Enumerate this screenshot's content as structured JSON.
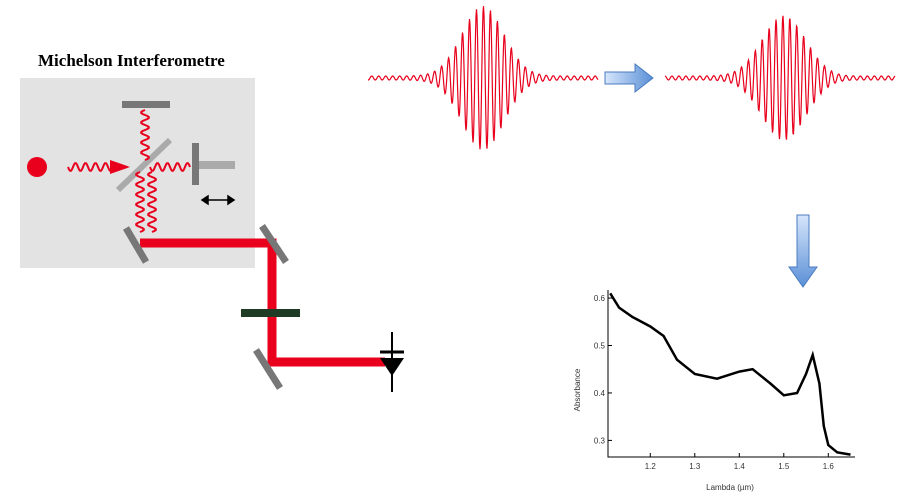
{
  "header": {
    "title": "Michelson  Interferometre"
  },
  "chart_data": {
    "type": "line",
    "x_label": "Lambda (µm)",
    "y_label": "Absorbance",
    "x": [
      1.11,
      1.13,
      1.16,
      1.2,
      1.23,
      1.26,
      1.3,
      1.35,
      1.4,
      1.43,
      1.47,
      1.5,
      1.53,
      1.55,
      1.565,
      1.58,
      1.59,
      1.6,
      1.62,
      1.65
    ],
    "values": [
      0.61,
      0.58,
      0.56,
      0.54,
      0.52,
      0.47,
      0.44,
      0.43,
      0.445,
      0.45,
      0.42,
      0.395,
      0.4,
      0.44,
      0.48,
      0.42,
      0.33,
      0.29,
      0.275,
      0.27
    ],
    "color": "#000000",
    "xlim": [
      1.105,
      1.66
    ],
    "ylim": [
      0.265,
      0.617
    ],
    "xticks": [
      1.2,
      1.3,
      1.4,
      1.5,
      1.6
    ],
    "yticks": [
      0.6,
      0.5,
      0.4,
      0.3
    ]
  }
}
